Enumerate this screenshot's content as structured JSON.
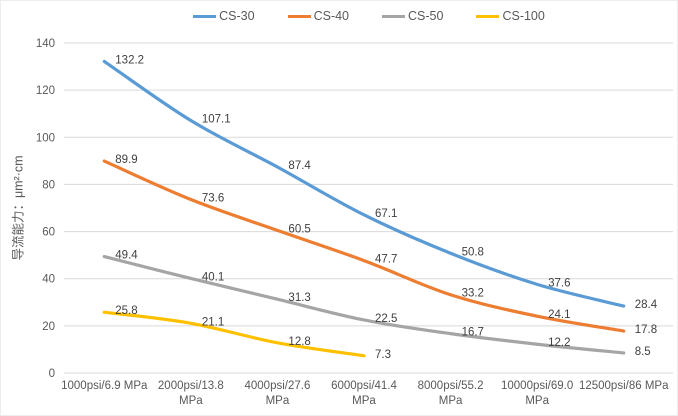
{
  "chart_data": {
    "type": "line",
    "title": "",
    "xlabel": "",
    "ylabel": "导流能力：μm²·cm",
    "categories": [
      "1000psi/6.9 MPa",
      "2000psi/13.8 MPa",
      "4000psi/27.6 MPa",
      "6000psi/41.4 MPa",
      "8000psi/55.2 MPa",
      "10000psi/69.0 MPa",
      "12500psi/86 MPa"
    ],
    "series": [
      {
        "name": "CS-30",
        "color": "#5B9BD5",
        "values": [
          132.2,
          107.1,
          87.4,
          67.1,
          50.8,
          37.6,
          28.4
        ]
      },
      {
        "name": "CS-40",
        "color": "#ED7D31",
        "values": [
          89.9,
          73.6,
          60.5,
          47.7,
          33.2,
          24.1,
          17.8
        ]
      },
      {
        "name": "CS-50",
        "color": "#A5A5A5",
        "values": [
          49.4,
          40.1,
          31.3,
          22.5,
          16.7,
          12.2,
          8.5
        ]
      },
      {
        "name": "CS-100",
        "color": "#FFC000",
        "values": [
          25.8,
          21.1,
          12.8,
          7.3,
          null,
          null,
          null
        ]
      }
    ],
    "ylim": [
      0,
      140
    ],
    "ytick_step": 20,
    "yticks": [
      0,
      20,
      40,
      60,
      80,
      100,
      120,
      140
    ],
    "grid": true,
    "smoothed_lines": true,
    "data_labels": true,
    "legend_position": "top",
    "colors": {
      "gridline": "#D9D9D9",
      "axis_text": "#595959",
      "data_label_text": "#404040"
    }
  }
}
